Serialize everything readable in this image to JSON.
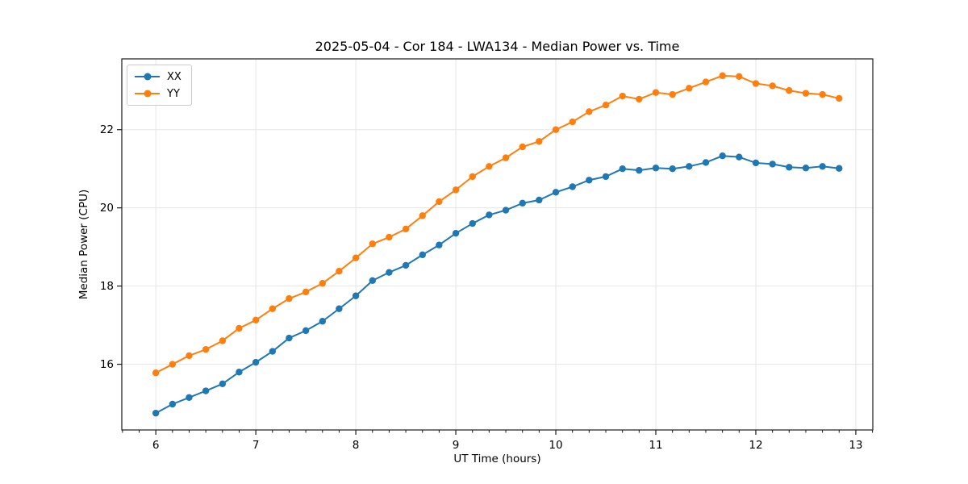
{
  "styles": {
    "grid_color": "#e5e5e5",
    "spine_color": "#1a1a1a",
    "tick_color": "#1a1a1a",
    "background": "#ffffff",
    "blue": "#1f77b4",
    "orange": "#ff7f0e"
  },
  "chart_data": {
    "type": "line",
    "title": "2025-05-04 - Cor 184 - LWA134 - Median Power vs. Time",
    "xlabel": "UT Time (hours)",
    "ylabel": "Median Power (CPU)",
    "grid": true,
    "legend_position": "upper left",
    "marker": "o",
    "xlim": [
      5.66,
      13.17
    ],
    "ylim": [
      14.32,
      23.81
    ],
    "xticks": [
      6,
      7,
      8,
      9,
      10,
      11,
      12,
      13
    ],
    "yticks": [
      16,
      18,
      20,
      22
    ],
    "x_minor_per_major": 6,
    "x": [
      6.0,
      6.167,
      6.333,
      6.5,
      6.667,
      6.833,
      7.0,
      7.167,
      7.333,
      7.5,
      7.667,
      7.833,
      8.0,
      8.167,
      8.333,
      8.5,
      8.667,
      8.833,
      9.0,
      9.167,
      9.333,
      9.5,
      9.667,
      9.833,
      10.0,
      10.167,
      10.333,
      10.5,
      10.667,
      10.833,
      11.0,
      11.167,
      11.333,
      11.5,
      11.667,
      11.833,
      12.0,
      12.167,
      12.333,
      12.5,
      12.667,
      12.833
    ],
    "series": [
      {
        "name": "XX",
        "color": "#1f77b4",
        "values": [
          14.75,
          14.98,
          15.15,
          15.32,
          15.5,
          15.8,
          16.05,
          16.33,
          16.67,
          16.86,
          17.1,
          17.42,
          17.75,
          18.14,
          18.35,
          18.53,
          18.8,
          19.05,
          19.35,
          19.6,
          19.82,
          19.94,
          20.12,
          20.2,
          20.4,
          20.54,
          20.71,
          20.8,
          21.0,
          20.96,
          21.02,
          21.0,
          21.06,
          21.16,
          21.33,
          21.3,
          21.15,
          21.12,
          21.04,
          21.02,
          21.06,
          21.01
        ]
      },
      {
        "name": "YY",
        "color": "#ff7f0e",
        "values": [
          15.78,
          16.0,
          16.22,
          16.38,
          16.6,
          16.92,
          17.13,
          17.42,
          17.68,
          17.85,
          18.07,
          18.38,
          18.72,
          19.08,
          19.25,
          19.46,
          19.8,
          20.16,
          20.46,
          20.8,
          21.06,
          21.28,
          21.56,
          21.7,
          22.0,
          22.2,
          22.46,
          22.63,
          22.86,
          22.78,
          22.95,
          22.9,
          23.06,
          23.22,
          23.38,
          23.36,
          23.18,
          23.12,
          23.0,
          22.93,
          22.9,
          22.8
        ]
      }
    ]
  }
}
